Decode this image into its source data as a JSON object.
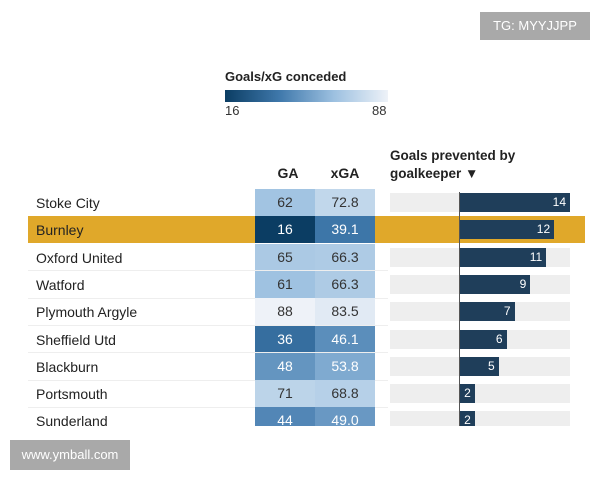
{
  "chart_data": {
    "type": "table",
    "legend": {
      "title": "Goals/xG conceded",
      "min_label": "16",
      "max_label": "88",
      "color_low": "#0b3d63",
      "color_high": "#eef2f8"
    },
    "columns": {
      "ga": "GA",
      "xga": "xGA",
      "bar": "Goals prevented by goalkeeper ▼"
    },
    "highlight_color": "#e0a82a",
    "bar_color": "#1f3e5a",
    "rows": [
      {
        "team": "Stoke City",
        "ga": "62",
        "xga": "72.8",
        "prevented": "14"
      },
      {
        "team": "Burnley",
        "ga": "16",
        "xga": "39.1",
        "prevented": "12",
        "highlight": true
      },
      {
        "team": "Oxford United",
        "ga": "65",
        "xga": "66.3",
        "prevented": "11"
      },
      {
        "team": "Watford",
        "ga": "61",
        "xga": "66.3",
        "prevented": "9"
      },
      {
        "team": "Plymouth Argyle",
        "ga": "88",
        "xga": "83.5",
        "prevented": "7"
      },
      {
        "team": "Sheffield Utd",
        "ga": "36",
        "xga": "46.1",
        "prevented": "6"
      },
      {
        "team": "Blackburn",
        "ga": "48",
        "xga": "53.8",
        "prevented": "5"
      },
      {
        "team": "Portsmouth",
        "ga": "71",
        "xga": "68.8",
        "prevented": "2"
      },
      {
        "team": "Sunderland",
        "ga": "44",
        "xga": "49.0",
        "prevented": "2"
      }
    ]
  },
  "watermarks": {
    "top": "TG: MYYJJPP",
    "bottom": "www.ymball.com"
  }
}
